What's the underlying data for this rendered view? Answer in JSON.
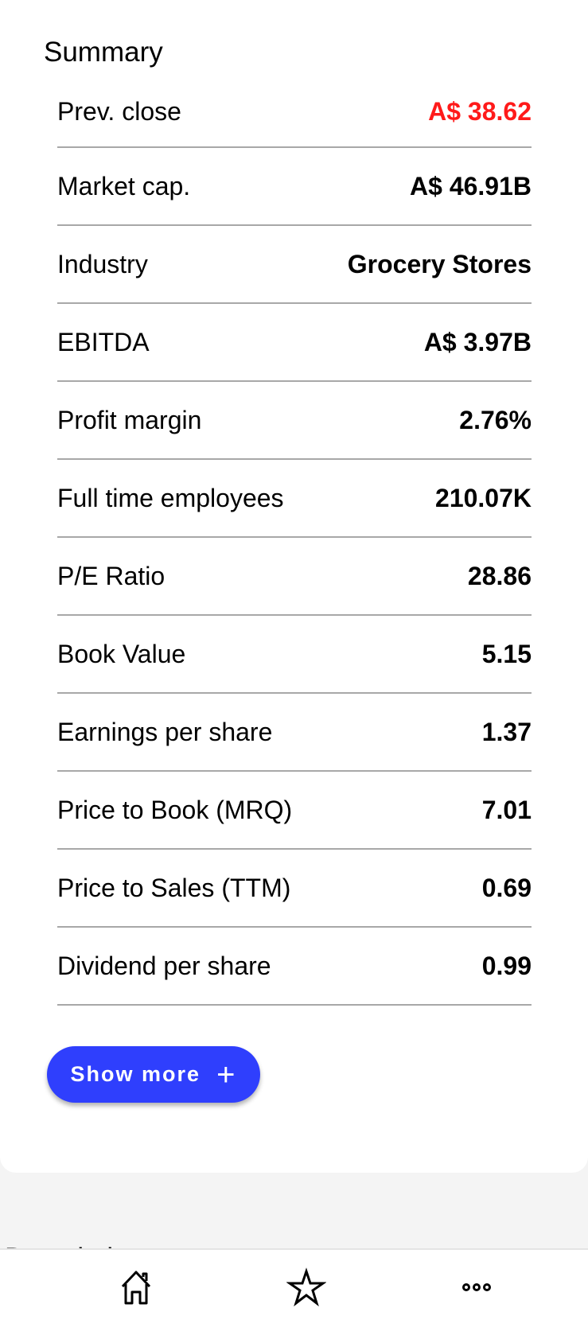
{
  "summary": {
    "title": "Summary",
    "rows": [
      {
        "label": "Prev. close",
        "value": "A$ 38.62"
      },
      {
        "label": "Market cap.",
        "value": "A$ 46.91B"
      },
      {
        "label": "Industry",
        "value": "Grocery Stores"
      },
      {
        "label": "EBITDA",
        "value": "A$ 3.97B"
      },
      {
        "label": "Profit margin",
        "value": "2.76%"
      },
      {
        "label": "Full time employees",
        "value": "210.07K"
      },
      {
        "label": "P/E Ratio",
        "value": "28.86"
      },
      {
        "label": "Book Value",
        "value": "5.15"
      },
      {
        "label": "Earnings per share",
        "value": "1.37"
      },
      {
        "label": "Price to Book (MRQ)",
        "value": "7.01"
      },
      {
        "label": "Price to Sales (TTM)",
        "value": "0.69"
      },
      {
        "label": "Dividend per share",
        "value": "0.99"
      }
    ],
    "show_more_label": "Show more"
  },
  "description": {
    "title": "Description"
  },
  "nav": {
    "items": [
      "home-icon",
      "star-icon",
      "more-icon"
    ]
  },
  "colors": {
    "accent": "#2f3ffd",
    "negative": "#ff1a1a"
  }
}
